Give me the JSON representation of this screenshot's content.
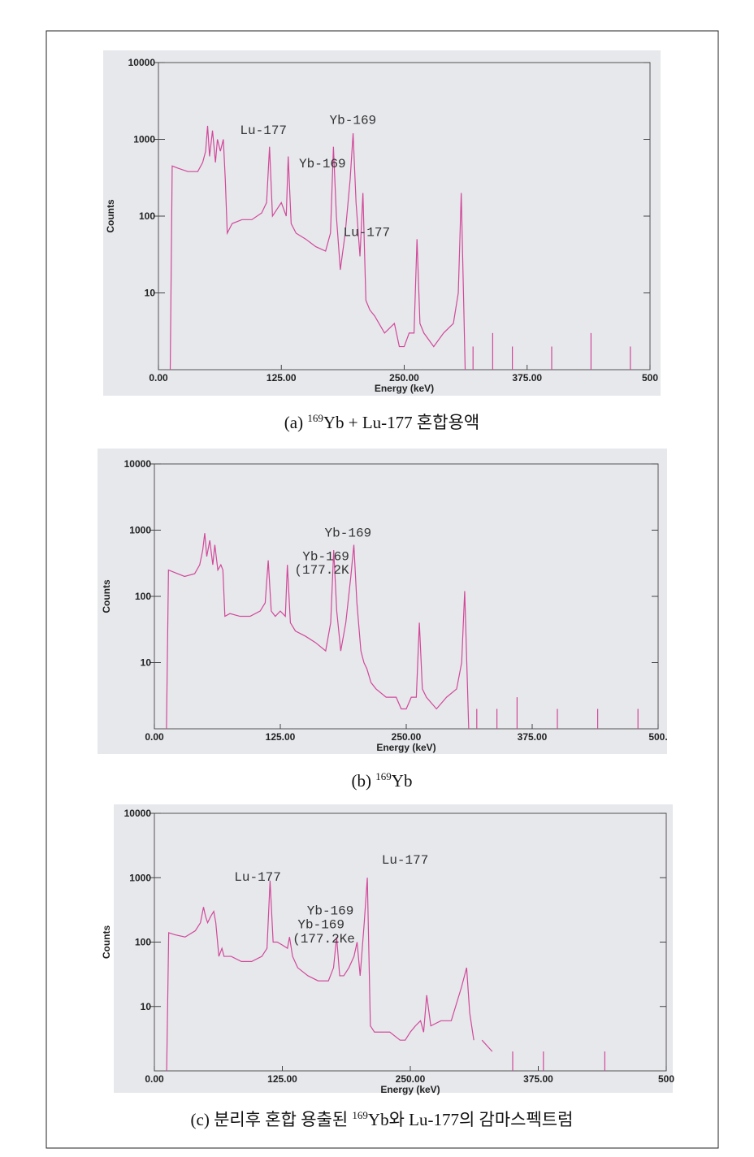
{
  "chart_data": [
    {
      "type": "line",
      "xlabel": "Energy (keV)",
      "ylabel": "Counts",
      "log_y": true,
      "xlim": [
        0,
        500
      ],
      "ylim": [
        1,
        10000
      ],
      "yticks": [
        10,
        100,
        1000,
        10000
      ],
      "xticks": [
        {
          "value": 0,
          "label": "0.00"
        },
        {
          "value": 125,
          "label": "125.00"
        },
        {
          "value": 250,
          "label": "250.00"
        },
        {
          "value": 375,
          "label": "375.00"
        },
        {
          "value": 500,
          "label": "500"
        }
      ],
      "x": [
        12,
        14,
        20,
        30,
        40,
        45,
        48,
        50,
        52,
        55,
        58,
        60,
        63,
        66,
        68,
        70,
        75,
        85,
        95,
        105,
        110,
        113,
        116,
        120,
        125,
        130,
        132,
        135,
        140,
        150,
        160,
        170,
        175,
        178,
        181,
        185,
        190,
        195,
        198,
        201,
        205,
        208,
        211,
        215,
        220,
        230,
        240,
        245,
        250,
        255,
        260,
        263,
        266,
        270,
        280,
        290,
        300,
        305,
        308,
        312,
        316,
        320,
        330,
        340,
        350,
        360,
        380,
        400,
        420,
        440,
        460,
        480,
        500
      ],
      "series": [
        {
          "color": "#d2489a",
          "values": [
            1,
            450,
            420,
            380,
            380,
            500,
            700,
            1500,
            600,
            1300,
            500,
            1000,
            700,
            1000,
            300,
            60,
            80,
            90,
            90,
            110,
            150,
            800,
            100,
            120,
            150,
            100,
            600,
            80,
            60,
            50,
            40,
            35,
            60,
            800,
            100,
            20,
            60,
            300,
            1200,
            150,
            30,
            200,
            8,
            6,
            5,
            3,
            4,
            2,
            2,
            3,
            3,
            50,
            4,
            3,
            2,
            3,
            4,
            10,
            200,
            1,
            null,
            2,
            null,
            3,
            null,
            2,
            null,
            2,
            null,
            3,
            null,
            2,
            null
          ]
        }
      ],
      "annotations": [
        {
          "text": "Lu-177",
          "x": 83,
          "y": 1170
        },
        {
          "text": "Yb-169",
          "x": 174,
          "y": 1580
        },
        {
          "text": "Yb-169",
          "x": 143,
          "y": 430
        },
        {
          "text": "Lu-177",
          "x": 188,
          "y": 55
        }
      ],
      "caption": [
        {
          "text": "(a) "
        },
        {
          "text": "169",
          "sup": true
        },
        {
          "text": "Yb + Lu-177 혼합용액"
        }
      ]
    },
    {
      "type": "line",
      "xlabel": "Energy (keV)",
      "ylabel": "Counts",
      "log_y": true,
      "xlim": [
        0,
        500
      ],
      "ylim": [
        1,
        10000
      ],
      "yticks": [
        10,
        100,
        1000,
        10000
      ],
      "xticks": [
        {
          "value": 0,
          "label": "0.00"
        },
        {
          "value": 125,
          "label": "125.00"
        },
        {
          "value": 250,
          "label": "250.00"
        },
        {
          "value": 375,
          "label": "375.00"
        },
        {
          "value": 500,
          "label": "500."
        }
      ],
      "x": [
        12,
        14,
        20,
        30,
        40,
        45,
        48,
        50,
        52,
        55,
        58,
        60,
        63,
        66,
        68,
        70,
        75,
        85,
        95,
        105,
        110,
        113,
        116,
        120,
        125,
        130,
        132,
        135,
        140,
        150,
        160,
        170,
        175,
        178,
        181,
        185,
        190,
        195,
        198,
        201,
        205,
        208,
        211,
        215,
        220,
        230,
        240,
        245,
        250,
        255,
        260,
        263,
        266,
        270,
        280,
        290,
        300,
        305,
        308,
        312,
        316,
        320,
        330,
        340,
        350,
        360,
        380,
        400,
        420,
        440,
        460,
        480,
        500
      ],
      "series": [
        {
          "color": "#d2489a",
          "values": [
            1,
            250,
            230,
            200,
            220,
            300,
            500,
            900,
            400,
            700,
            300,
            600,
            250,
            300,
            250,
            50,
            55,
            50,
            50,
            60,
            80,
            350,
            60,
            50,
            60,
            50,
            300,
            40,
            30,
            25,
            20,
            15,
            40,
            500,
            60,
            15,
            40,
            200,
            600,
            80,
            15,
            10,
            8,
            5,
            4,
            3,
            3,
            2,
            2,
            3,
            3,
            40,
            4,
            3,
            2,
            3,
            4,
            10,
            120,
            1,
            null,
            2,
            null,
            2,
            null,
            3,
            null,
            2,
            null,
            2,
            null,
            2,
            null
          ]
        }
      ],
      "annotations": [
        {
          "text": "Yb-169",
          "x": 169,
          "y": 800
        },
        {
          "text": "Yb-169",
          "x": 147,
          "y": 350
        },
        {
          "text": "(177.2K",
          "x": 139,
          "y": 220
        }
      ],
      "caption": [
        {
          "text": "(b) "
        },
        {
          "text": "169",
          "sup": true
        },
        {
          "text": "Yb"
        }
      ]
    },
    {
      "type": "line",
      "xlabel": "Energy (keV)",
      "ylabel": "Counts",
      "log_y": true,
      "xlim": [
        0,
        500
      ],
      "ylim": [
        1,
        10000
      ],
      "yticks": [
        10,
        100,
        1000,
        10000
      ],
      "xticks": [
        {
          "value": 0,
          "label": "0.00"
        },
        {
          "value": 125,
          "label": "125.00"
        },
        {
          "value": 250,
          "label": "250.00"
        },
        {
          "value": 375,
          "label": "375.00"
        },
        {
          "value": 500,
          "label": "500"
        }
      ],
      "x": [
        12,
        14,
        20,
        30,
        40,
        45,
        48,
        50,
        52,
        55,
        58,
        60,
        63,
        66,
        68,
        70,
        75,
        85,
        95,
        105,
        110,
        113,
        116,
        120,
        125,
        130,
        132,
        135,
        140,
        150,
        160,
        170,
        175,
        178,
        181,
        185,
        190,
        195,
        198,
        201,
        205,
        208,
        211,
        215,
        220,
        230,
        240,
        245,
        250,
        255,
        260,
        263,
        266,
        270,
        280,
        290,
        300,
        305,
        308,
        312,
        316,
        320,
        330,
        340,
        350,
        360,
        380,
        400,
        420,
        440,
        460,
        480,
        500
      ],
      "series": [
        {
          "color": "#d2489a",
          "values": [
            1,
            140,
            130,
            120,
            150,
            200,
            350,
            250,
            200,
            250,
            300,
            200,
            60,
            80,
            60,
            60,
            60,
            50,
            50,
            60,
            80,
            900,
            100,
            100,
            90,
            80,
            120,
            60,
            40,
            30,
            25,
            25,
            40,
            120,
            30,
            30,
            40,
            60,
            100,
            30,
            200,
            1000,
            5,
            4,
            4,
            4,
            3,
            3,
            4,
            5,
            6,
            4,
            15,
            5,
            6,
            6,
            20,
            40,
            8,
            3,
            null,
            3,
            2,
            null,
            2,
            null,
            2,
            null,
            null,
            2,
            null,
            null,
            null
          ]
        }
      ],
      "annotations": [
        {
          "text": "Lu-177",
          "x": 222,
          "y": 1650
        },
        {
          "text": "Lu-177",
          "x": 78,
          "y": 900
        },
        {
          "text": "Yb-169",
          "x": 149,
          "y": 270
        },
        {
          "text": "Yb-169",
          "x": 140,
          "y": 165
        },
        {
          "text": "(177.2Ke",
          "x": 135,
          "y": 98
        }
      ],
      "caption": [
        {
          "text": "(c) 분리후 혼합 용출된 "
        },
        {
          "text": "169",
          "sup": true
        },
        {
          "text": "Yb와 Lu-177의 감마스펙트럼"
        }
      ]
    }
  ]
}
